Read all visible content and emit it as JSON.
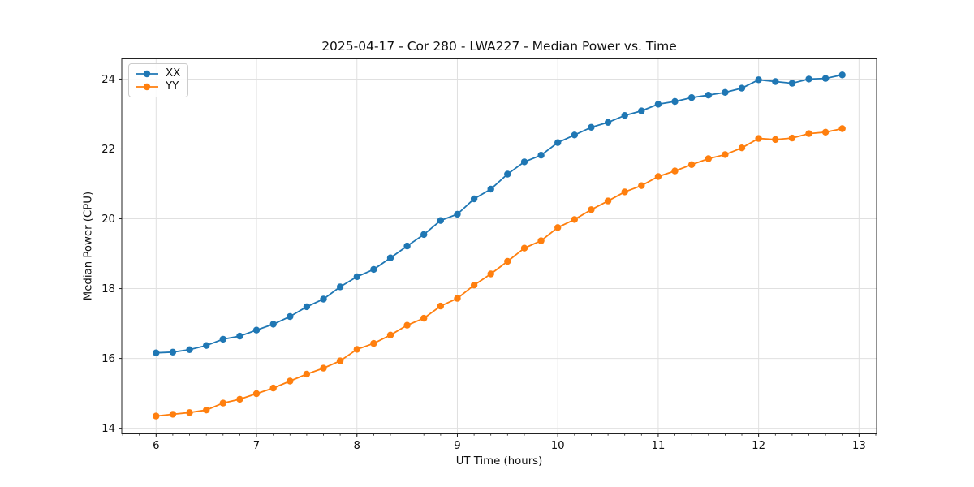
{
  "figure": {
    "title": "2025-04-17 - Cor 280 - LWA227 - Median Power vs. Time"
  },
  "chart_data": {
    "type": "line",
    "title": "2025-04-17 - Cor 280 - LWA227 - Median Power vs. Time",
    "xlabel": "UT Time (hours)",
    "ylabel": "Median Power (CPU)",
    "xlim": [
      5.658,
      13.175
    ],
    "ylim": [
      13.84,
      24.58
    ],
    "xticks": [
      6,
      7,
      8,
      9,
      10,
      11,
      12,
      13
    ],
    "yticks": [
      14,
      16,
      18,
      20,
      22,
      24
    ],
    "minor_xtick_interval": 0.166667,
    "grid": true,
    "legend_position": "upper left",
    "marker": "o",
    "x": [
      6.0,
      6.1667,
      6.3333,
      6.5,
      6.6667,
      6.8333,
      7.0,
      7.1667,
      7.3333,
      7.5,
      7.6667,
      7.8333,
      8.0,
      8.1667,
      8.3333,
      8.5,
      8.6667,
      8.8333,
      9.0,
      9.1667,
      9.3333,
      9.5,
      9.6667,
      9.8333,
      10.0,
      10.1667,
      10.3333,
      10.5,
      10.6667,
      10.8333,
      11.0,
      11.1667,
      11.3333,
      11.5,
      11.6667,
      11.8333,
      12.0,
      12.1667,
      12.3333,
      12.5,
      12.6667,
      12.8333
    ],
    "series": [
      {
        "name": "XX",
        "color": "#1f77b4",
        "values": [
          16.16,
          16.18,
          16.25,
          16.37,
          16.55,
          16.64,
          16.81,
          16.98,
          17.2,
          17.48,
          17.7,
          18.05,
          18.34,
          18.55,
          18.88,
          19.22,
          19.55,
          19.95,
          20.13,
          20.57,
          20.85,
          21.28,
          21.63,
          21.82,
          22.18,
          22.4,
          22.62,
          22.76,
          22.96,
          23.09,
          23.28,
          23.36,
          23.47,
          23.54,
          23.62,
          23.74,
          23.98,
          23.93,
          23.88,
          24.0,
          24.02,
          24.12
        ]
      },
      {
        "name": "YY",
        "color": "#ff7f0e",
        "values": [
          14.35,
          14.4,
          14.45,
          14.52,
          14.72,
          14.83,
          14.99,
          15.15,
          15.35,
          15.55,
          15.72,
          15.93,
          16.26,
          16.43,
          16.67,
          16.95,
          17.15,
          17.5,
          17.72,
          18.1,
          18.42,
          18.78,
          19.16,
          19.37,
          19.75,
          19.98,
          20.26,
          20.51,
          20.77,
          20.95,
          21.21,
          21.37,
          21.55,
          21.72,
          21.84,
          22.03,
          22.3,
          22.27,
          22.31,
          22.44,
          22.48,
          22.58
        ]
      }
    ]
  }
}
